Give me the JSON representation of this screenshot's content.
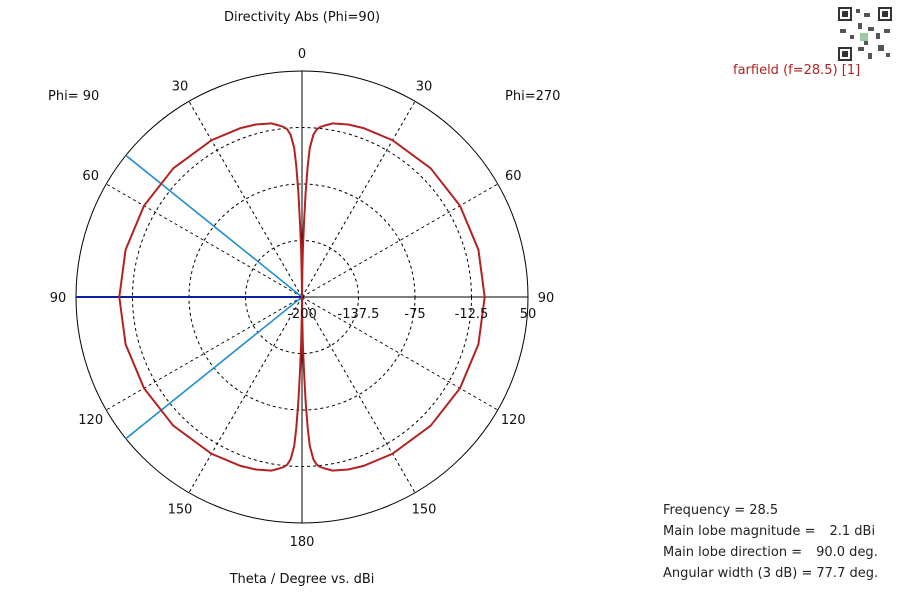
{
  "chart_data": {
    "type": "polar",
    "title": "Directivity Abs (Phi=90)",
    "xlabel": "Theta / Degree vs. dBi",
    "phi_left_label": "Phi= 90",
    "phi_right_label": "Phi=270",
    "angle_ticks": [
      {
        "angle": 0,
        "label": "0"
      },
      {
        "angle": 30,
        "label": "30"
      },
      {
        "angle": 60,
        "label": "60"
      },
      {
        "angle": 90,
        "label": "90"
      },
      {
        "angle": 120,
        "label": "120"
      },
      {
        "angle": 150,
        "label": "150"
      },
      {
        "angle": 180,
        "label": "180"
      },
      {
        "angle": -30,
        "label": "30"
      },
      {
        "angle": -60,
        "label": "60"
      },
      {
        "angle": -90,
        "label": "90"
      },
      {
        "angle": -120,
        "label": "120"
      },
      {
        "angle": -150,
        "label": "150"
      }
    ],
    "radial_range": [
      -200,
      50
    ],
    "radial_ticks": [
      {
        "value": -200,
        "label": "-200"
      },
      {
        "value": -137.5,
        "label": "-137.5"
      },
      {
        "value": -75,
        "label": "-75"
      },
      {
        "value": -12.5,
        "label": "-12.5"
      },
      {
        "value": 50,
        "label": "50"
      }
    ],
    "series": [
      {
        "name": "farfield (f=28.5) [1]",
        "color": "#b22222",
        "theta_deg": [
          0,
          0.5,
          1,
          1.5,
          2,
          2.5,
          3,
          4,
          5,
          6,
          8,
          10,
          15,
          20,
          30,
          45,
          60,
          75,
          90,
          105,
          120,
          135,
          150,
          160,
          165,
          170,
          172,
          174,
          175,
          176,
          177,
          177.5,
          178,
          178.5,
          179,
          179.5,
          180
        ],
        "directivity_dbi": [
          -200,
          -180,
          -150,
          -120,
          -85,
          -55,
          -35,
          -20,
          -14,
          -11,
          -8,
          -5,
          -2.5,
          -1.2,
          0.3,
          1.3,
          1.8,
          2.0,
          2.1,
          2.0,
          1.8,
          1.3,
          0.3,
          -1.2,
          -2.5,
          -5,
          -8,
          -11,
          -14,
          -20,
          -35,
          -55,
          -85,
          -120,
          -150,
          -180,
          -200
        ]
      }
    ],
    "main_lobe_direction_deg": 90.0,
    "beamwidth_lines_deg": [
      51.2,
      128.8
    ],
    "info": {
      "frequency_label": "Frequency =",
      "frequency_value": "28.5",
      "magnitude_label": "Main lobe magnitude =",
      "magnitude_value": "2.1 dBi",
      "direction_label": "Main lobe direction =",
      "direction_value": "90.0 deg.",
      "angular_label": "Angular width (3 dB) =",
      "angular_value": "77.7 deg."
    }
  }
}
